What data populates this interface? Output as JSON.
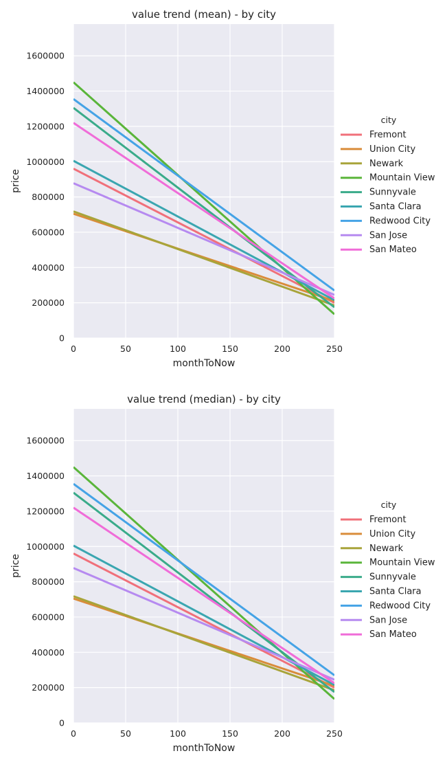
{
  "chart_data": [
    {
      "type": "line",
      "title": "value trend (mean) - by city",
      "xlabel": "monthToNow",
      "ylabel": "price",
      "xlim": [
        0,
        250
      ],
      "ylim": [
        0,
        1780000
      ],
      "xticks": [
        0,
        50,
        100,
        150,
        200,
        250
      ],
      "yticks": [
        0,
        200000,
        400000,
        600000,
        800000,
        1000000,
        1200000,
        1400000,
        1600000
      ],
      "grid": true,
      "legend": {
        "title": "city",
        "placement": "right"
      },
      "series": [
        {
          "name": "Fremont",
          "color": "#f0707a",
          "x": [
            0,
            250
          ],
          "y": [
            960000,
            200000
          ]
        },
        {
          "name": "Union City",
          "color": "#d98c3a",
          "x": [
            0,
            250
          ],
          "y": [
            705000,
            210000
          ]
        },
        {
          "name": "Newark",
          "color": "#a8a43a",
          "x": [
            0,
            250
          ],
          "y": [
            718000,
            185000
          ]
        },
        {
          "name": "Mountain View",
          "color": "#5ab53a",
          "x": [
            0,
            250
          ],
          "y": [
            1450000,
            135000
          ]
        },
        {
          "name": "Sunnyvale",
          "color": "#3aab8a",
          "x": [
            0,
            250
          ],
          "y": [
            1305000,
            175000
          ]
        },
        {
          "name": "Santa Clara",
          "color": "#3aa6b0",
          "x": [
            0,
            250
          ],
          "y": [
            1005000,
            215000
          ]
        },
        {
          "name": "Redwood City",
          "color": "#45a3e6",
          "x": [
            0,
            250
          ],
          "y": [
            1355000,
            270000
          ]
        },
        {
          "name": "San Jose",
          "color": "#b68af0",
          "x": [
            0,
            250
          ],
          "y": [
            878000,
            245000
          ]
        },
        {
          "name": "San Mateo",
          "color": "#f06cd8",
          "x": [
            0,
            250
          ],
          "y": [
            1220000,
            225000
          ]
        }
      ]
    },
    {
      "type": "line",
      "title": "value trend (median) - by city",
      "xlabel": "monthToNow",
      "ylabel": "price",
      "xlim": [
        0,
        250
      ],
      "ylim": [
        0,
        1780000
      ],
      "xticks": [
        0,
        50,
        100,
        150,
        200,
        250
      ],
      "yticks": [
        0,
        200000,
        400000,
        600000,
        800000,
        1000000,
        1200000,
        1400000,
        1600000
      ],
      "grid": true,
      "legend": {
        "title": "city",
        "placement": "right"
      },
      "series": [
        {
          "name": "Fremont",
          "color": "#f0707a",
          "x": [
            0,
            250
          ],
          "y": [
            960000,
            200000
          ]
        },
        {
          "name": "Union City",
          "color": "#d98c3a",
          "x": [
            0,
            250
          ],
          "y": [
            705000,
            210000
          ]
        },
        {
          "name": "Newark",
          "color": "#a8a43a",
          "x": [
            0,
            250
          ],
          "y": [
            718000,
            185000
          ]
        },
        {
          "name": "Mountain View",
          "color": "#5ab53a",
          "x": [
            0,
            250
          ],
          "y": [
            1450000,
            135000
          ]
        },
        {
          "name": "Sunnyvale",
          "color": "#3aab8a",
          "x": [
            0,
            250
          ],
          "y": [
            1305000,
            175000
          ]
        },
        {
          "name": "Santa Clara",
          "color": "#3aa6b0",
          "x": [
            0,
            250
          ],
          "y": [
            1005000,
            215000
          ]
        },
        {
          "name": "Redwood City",
          "color": "#45a3e6",
          "x": [
            0,
            250
          ],
          "y": [
            1355000,
            270000
          ]
        },
        {
          "name": "San Jose",
          "color": "#b68af0",
          "x": [
            0,
            250
          ],
          "y": [
            878000,
            245000
          ]
        },
        {
          "name": "San Mateo",
          "color": "#f06cd8",
          "x": [
            0,
            250
          ],
          "y": [
            1220000,
            225000
          ]
        }
      ]
    }
  ],
  "style": {
    "plot_background": "#eaeaf2",
    "grid_color": "#ffffff",
    "text_color": "#222222"
  }
}
